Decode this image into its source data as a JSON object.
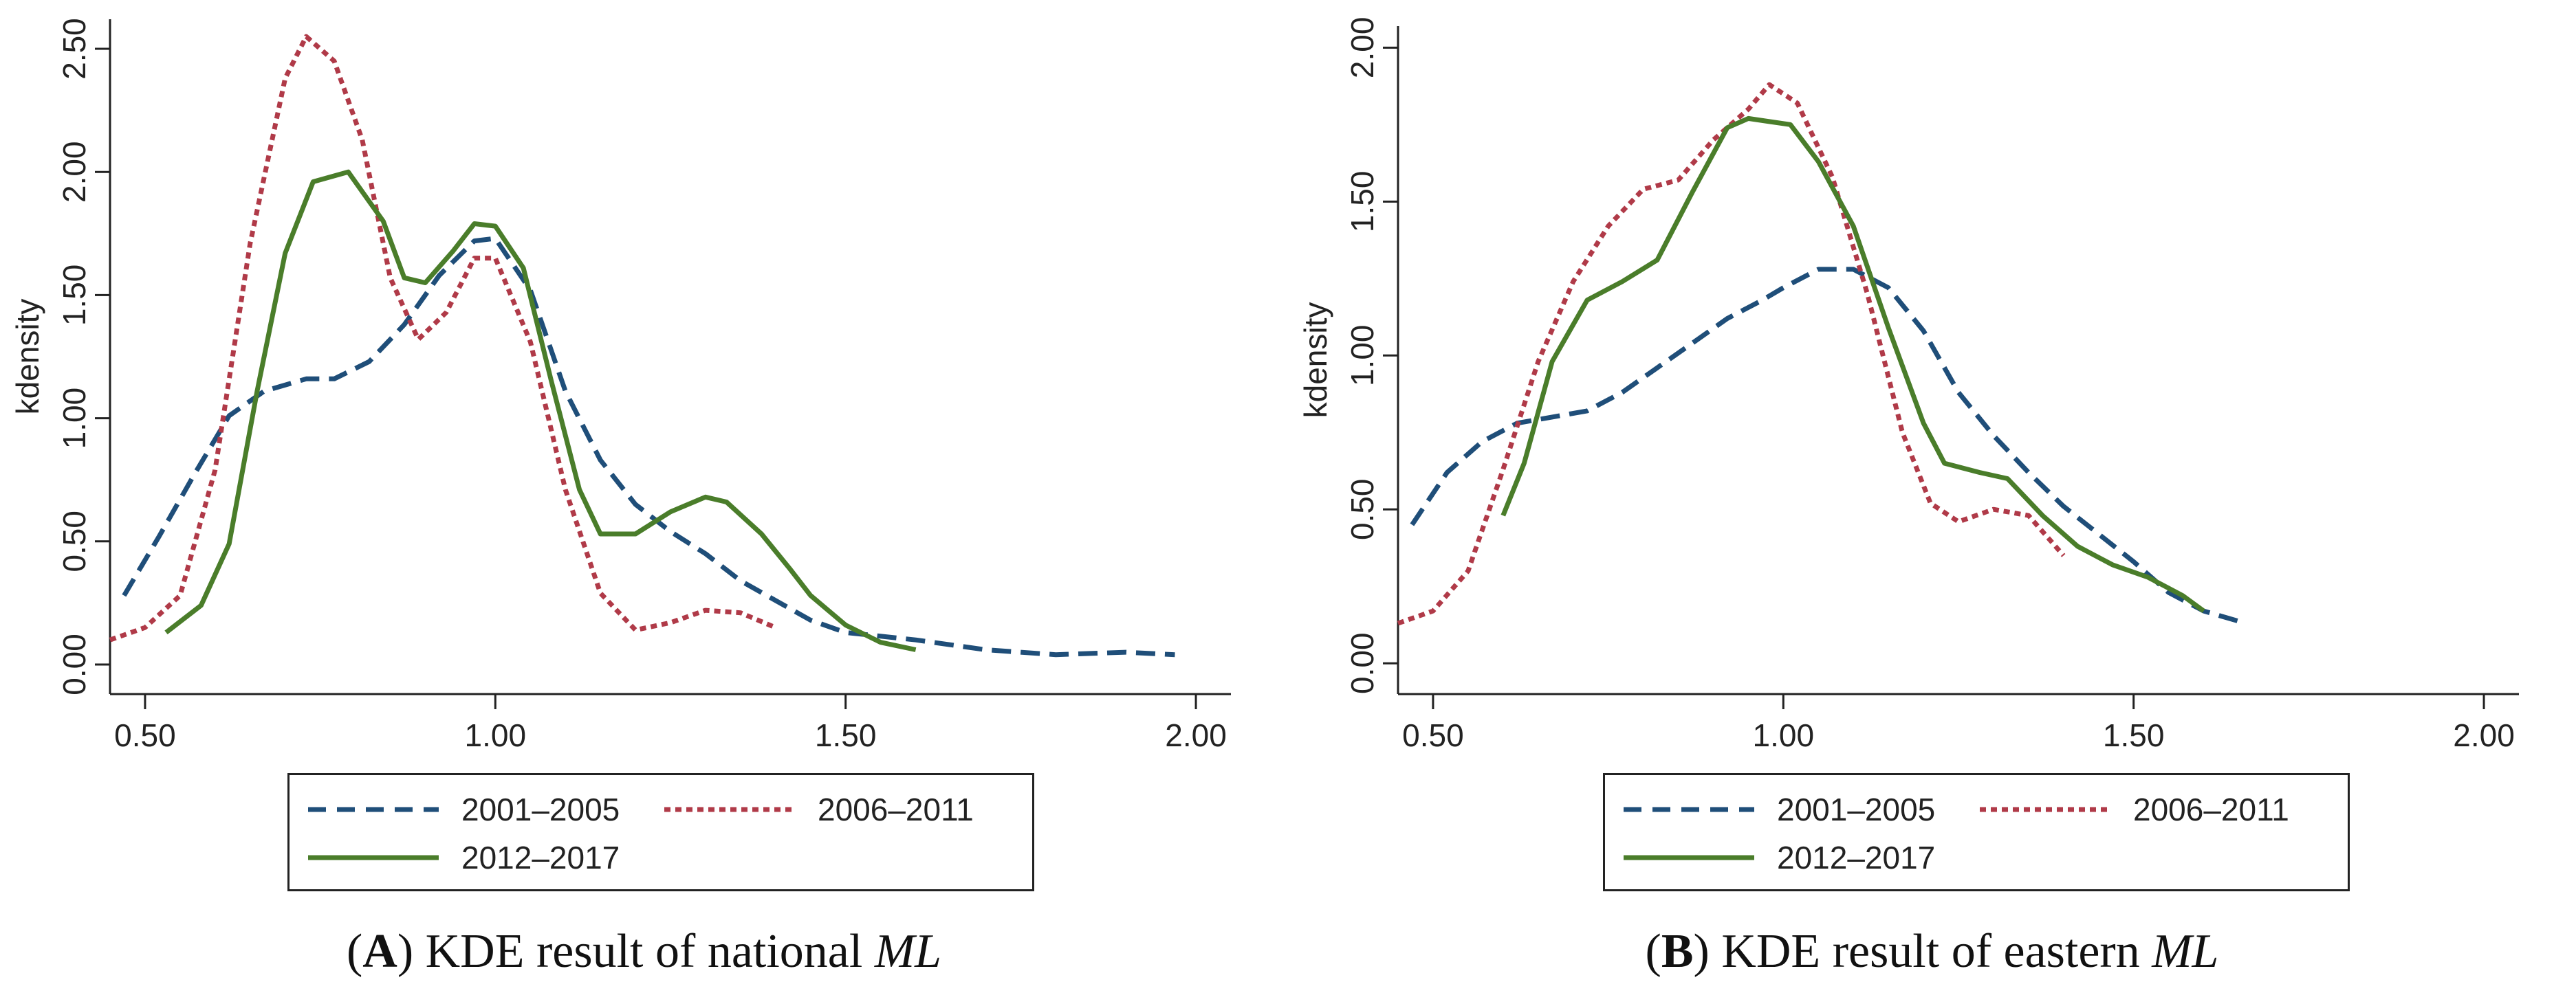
{
  "chart_data": [
    {
      "type": "line",
      "panel_letter": "A",
      "caption": "KDE result of national",
      "caption_italic": "ML",
      "xlabel": "",
      "ylabel": "kdensity",
      "xlim": [
        0.45,
        2.05
      ],
      "ylim": [
        -0.12,
        2.62
      ],
      "x_ticks": [
        "0.50",
        "1.00",
        "1.50",
        "2.00"
      ],
      "y_ticks": [
        "0.00",
        "0.50",
        "1.00",
        "1.50",
        "2.00",
        "2.50"
      ],
      "grid": false,
      "legend_position": "bottom",
      "series": [
        {
          "name": "2001–2005",
          "color": "#1f4e79",
          "style": "dashed",
          "points": [
            [
              0.47,
              0.28
            ],
            [
              0.52,
              0.52
            ],
            [
              0.57,
              0.77
            ],
            [
              0.62,
              1.01
            ],
            [
              0.67,
              1.11
            ],
            [
              0.73,
              1.16
            ],
            [
              0.77,
              1.16
            ],
            [
              0.82,
              1.23
            ],
            [
              0.87,
              1.38
            ],
            [
              0.92,
              1.58
            ],
            [
              0.97,
              1.72
            ],
            [
              1.0,
              1.73
            ],
            [
              1.05,
              1.52
            ],
            [
              1.1,
              1.11
            ],
            [
              1.15,
              0.83
            ],
            [
              1.2,
              0.65
            ],
            [
              1.25,
              0.54
            ],
            [
              1.3,
              0.45
            ],
            [
              1.35,
              0.34
            ],
            [
              1.4,
              0.26
            ],
            [
              1.45,
              0.18
            ],
            [
              1.5,
              0.13
            ],
            [
              1.6,
              0.1
            ],
            [
              1.7,
              0.06
            ],
            [
              1.8,
              0.04
            ],
            [
              1.9,
              0.05
            ],
            [
              1.97,
              0.04
            ]
          ]
        },
        {
          "name": "2006–2011",
          "color": "#b03a48",
          "style": "dotted",
          "points": [
            [
              0.45,
              0.1
            ],
            [
              0.5,
              0.15
            ],
            [
              0.55,
              0.28
            ],
            [
              0.6,
              0.79
            ],
            [
              0.65,
              1.71
            ],
            [
              0.7,
              2.38
            ],
            [
              0.73,
              2.55
            ],
            [
              0.77,
              2.45
            ],
            [
              0.81,
              2.13
            ],
            [
              0.85,
              1.57
            ],
            [
              0.89,
              1.32
            ],
            [
              0.93,
              1.43
            ],
            [
              0.97,
              1.65
            ],
            [
              1.0,
              1.65
            ],
            [
              1.05,
              1.31
            ],
            [
              1.1,
              0.71
            ],
            [
              1.15,
              0.29
            ],
            [
              1.2,
              0.14
            ],
            [
              1.25,
              0.17
            ],
            [
              1.3,
              0.22
            ],
            [
              1.35,
              0.21
            ],
            [
              1.4,
              0.15
            ]
          ]
        },
        {
          "name": "2012–2017",
          "color": "#4a7d2a",
          "style": "solid",
          "points": [
            [
              0.53,
              0.13
            ],
            [
              0.58,
              0.24
            ],
            [
              0.62,
              0.49
            ],
            [
              0.66,
              1.11
            ],
            [
              0.7,
              1.67
            ],
            [
              0.74,
              1.96
            ],
            [
              0.79,
              2.0
            ],
            [
              0.84,
              1.8
            ],
            [
              0.87,
              1.57
            ],
            [
              0.9,
              1.55
            ],
            [
              0.94,
              1.68
            ],
            [
              0.97,
              1.79
            ],
            [
              1.0,
              1.78
            ],
            [
              1.04,
              1.61
            ],
            [
              1.08,
              1.15
            ],
            [
              1.12,
              0.71
            ],
            [
              1.15,
              0.53
            ],
            [
              1.2,
              0.53
            ],
            [
              1.25,
              0.62
            ],
            [
              1.3,
              0.68
            ],
            [
              1.33,
              0.66
            ],
            [
              1.38,
              0.53
            ],
            [
              1.42,
              0.39
            ],
            [
              1.45,
              0.28
            ],
            [
              1.5,
              0.16
            ],
            [
              1.55,
              0.09
            ],
            [
              1.6,
              0.06
            ]
          ]
        }
      ]
    },
    {
      "type": "line",
      "panel_letter": "B",
      "caption": "KDE result of eastern",
      "caption_italic": "ML",
      "xlabel": "",
      "ylabel": "kdensity",
      "xlim": [
        0.45,
        2.05
      ],
      "ylim": [
        -0.1,
        2.07
      ],
      "x_ticks": [
        "0.50",
        "1.00",
        "1.50",
        "2.00"
      ],
      "y_ticks": [
        "0.00",
        "0.50",
        "1.00",
        "1.50",
        "2.00"
      ],
      "grid": false,
      "legend_position": "bottom",
      "series": [
        {
          "name": "2001–2005",
          "color": "#1f4e79",
          "style": "dashed",
          "points": [
            [
              0.47,
              0.45
            ],
            [
              0.52,
              0.62
            ],
            [
              0.57,
              0.72
            ],
            [
              0.62,
              0.78
            ],
            [
              0.67,
              0.8
            ],
            [
              0.72,
              0.82
            ],
            [
              0.77,
              0.88
            ],
            [
              0.82,
              0.96
            ],
            [
              0.87,
              1.04
            ],
            [
              0.92,
              1.12
            ],
            [
              0.97,
              1.18
            ],
            [
              1.0,
              1.22
            ],
            [
              1.05,
              1.28
            ],
            [
              1.1,
              1.28
            ],
            [
              1.15,
              1.22
            ],
            [
              1.2,
              1.08
            ],
            [
              1.25,
              0.88
            ],
            [
              1.3,
              0.74
            ],
            [
              1.35,
              0.62
            ],
            [
              1.4,
              0.51
            ],
            [
              1.45,
              0.42
            ],
            [
              1.5,
              0.33
            ],
            [
              1.55,
              0.23
            ],
            [
              1.6,
              0.17
            ],
            [
              1.66,
              0.13
            ]
          ]
        },
        {
          "name": "2006–2011",
          "color": "#b03a48",
          "style": "dotted",
          "points": [
            [
              0.45,
              0.13
            ],
            [
              0.5,
              0.17
            ],
            [
              0.55,
              0.3
            ],
            [
              0.6,
              0.63
            ],
            [
              0.65,
              0.98
            ],
            [
              0.7,
              1.24
            ],
            [
              0.75,
              1.42
            ],
            [
              0.8,
              1.54
            ],
            [
              0.85,
              1.57
            ],
            [
              0.9,
              1.7
            ],
            [
              0.95,
              1.8
            ],
            [
              0.98,
              1.88
            ],
            [
              1.02,
              1.82
            ],
            [
              1.07,
              1.58
            ],
            [
              1.12,
              1.2
            ],
            [
              1.17,
              0.75
            ],
            [
              1.21,
              0.52
            ],
            [
              1.25,
              0.46
            ],
            [
              1.3,
              0.5
            ],
            [
              1.35,
              0.48
            ],
            [
              1.4,
              0.35
            ]
          ]
        },
        {
          "name": "2012–2017",
          "color": "#4a7d2a",
          "style": "solid",
          "points": [
            [
              0.6,
              0.48
            ],
            [
              0.63,
              0.65
            ],
            [
              0.67,
              0.98
            ],
            [
              0.72,
              1.18
            ],
            [
              0.77,
              1.24
            ],
            [
              0.82,
              1.31
            ],
            [
              0.87,
              1.53
            ],
            [
              0.92,
              1.74
            ],
            [
              0.95,
              1.77
            ],
            [
              0.98,
              1.76
            ],
            [
              1.01,
              1.75
            ],
            [
              1.05,
              1.63
            ],
            [
              1.1,
              1.42
            ],
            [
              1.15,
              1.09
            ],
            [
              1.2,
              0.78
            ],
            [
              1.23,
              0.65
            ],
            [
              1.28,
              0.62
            ],
            [
              1.32,
              0.6
            ],
            [
              1.37,
              0.48
            ],
            [
              1.42,
              0.38
            ],
            [
              1.47,
              0.32
            ],
            [
              1.52,
              0.28
            ],
            [
              1.57,
              0.22
            ],
            [
              1.6,
              0.17
            ]
          ]
        }
      ]
    }
  ]
}
